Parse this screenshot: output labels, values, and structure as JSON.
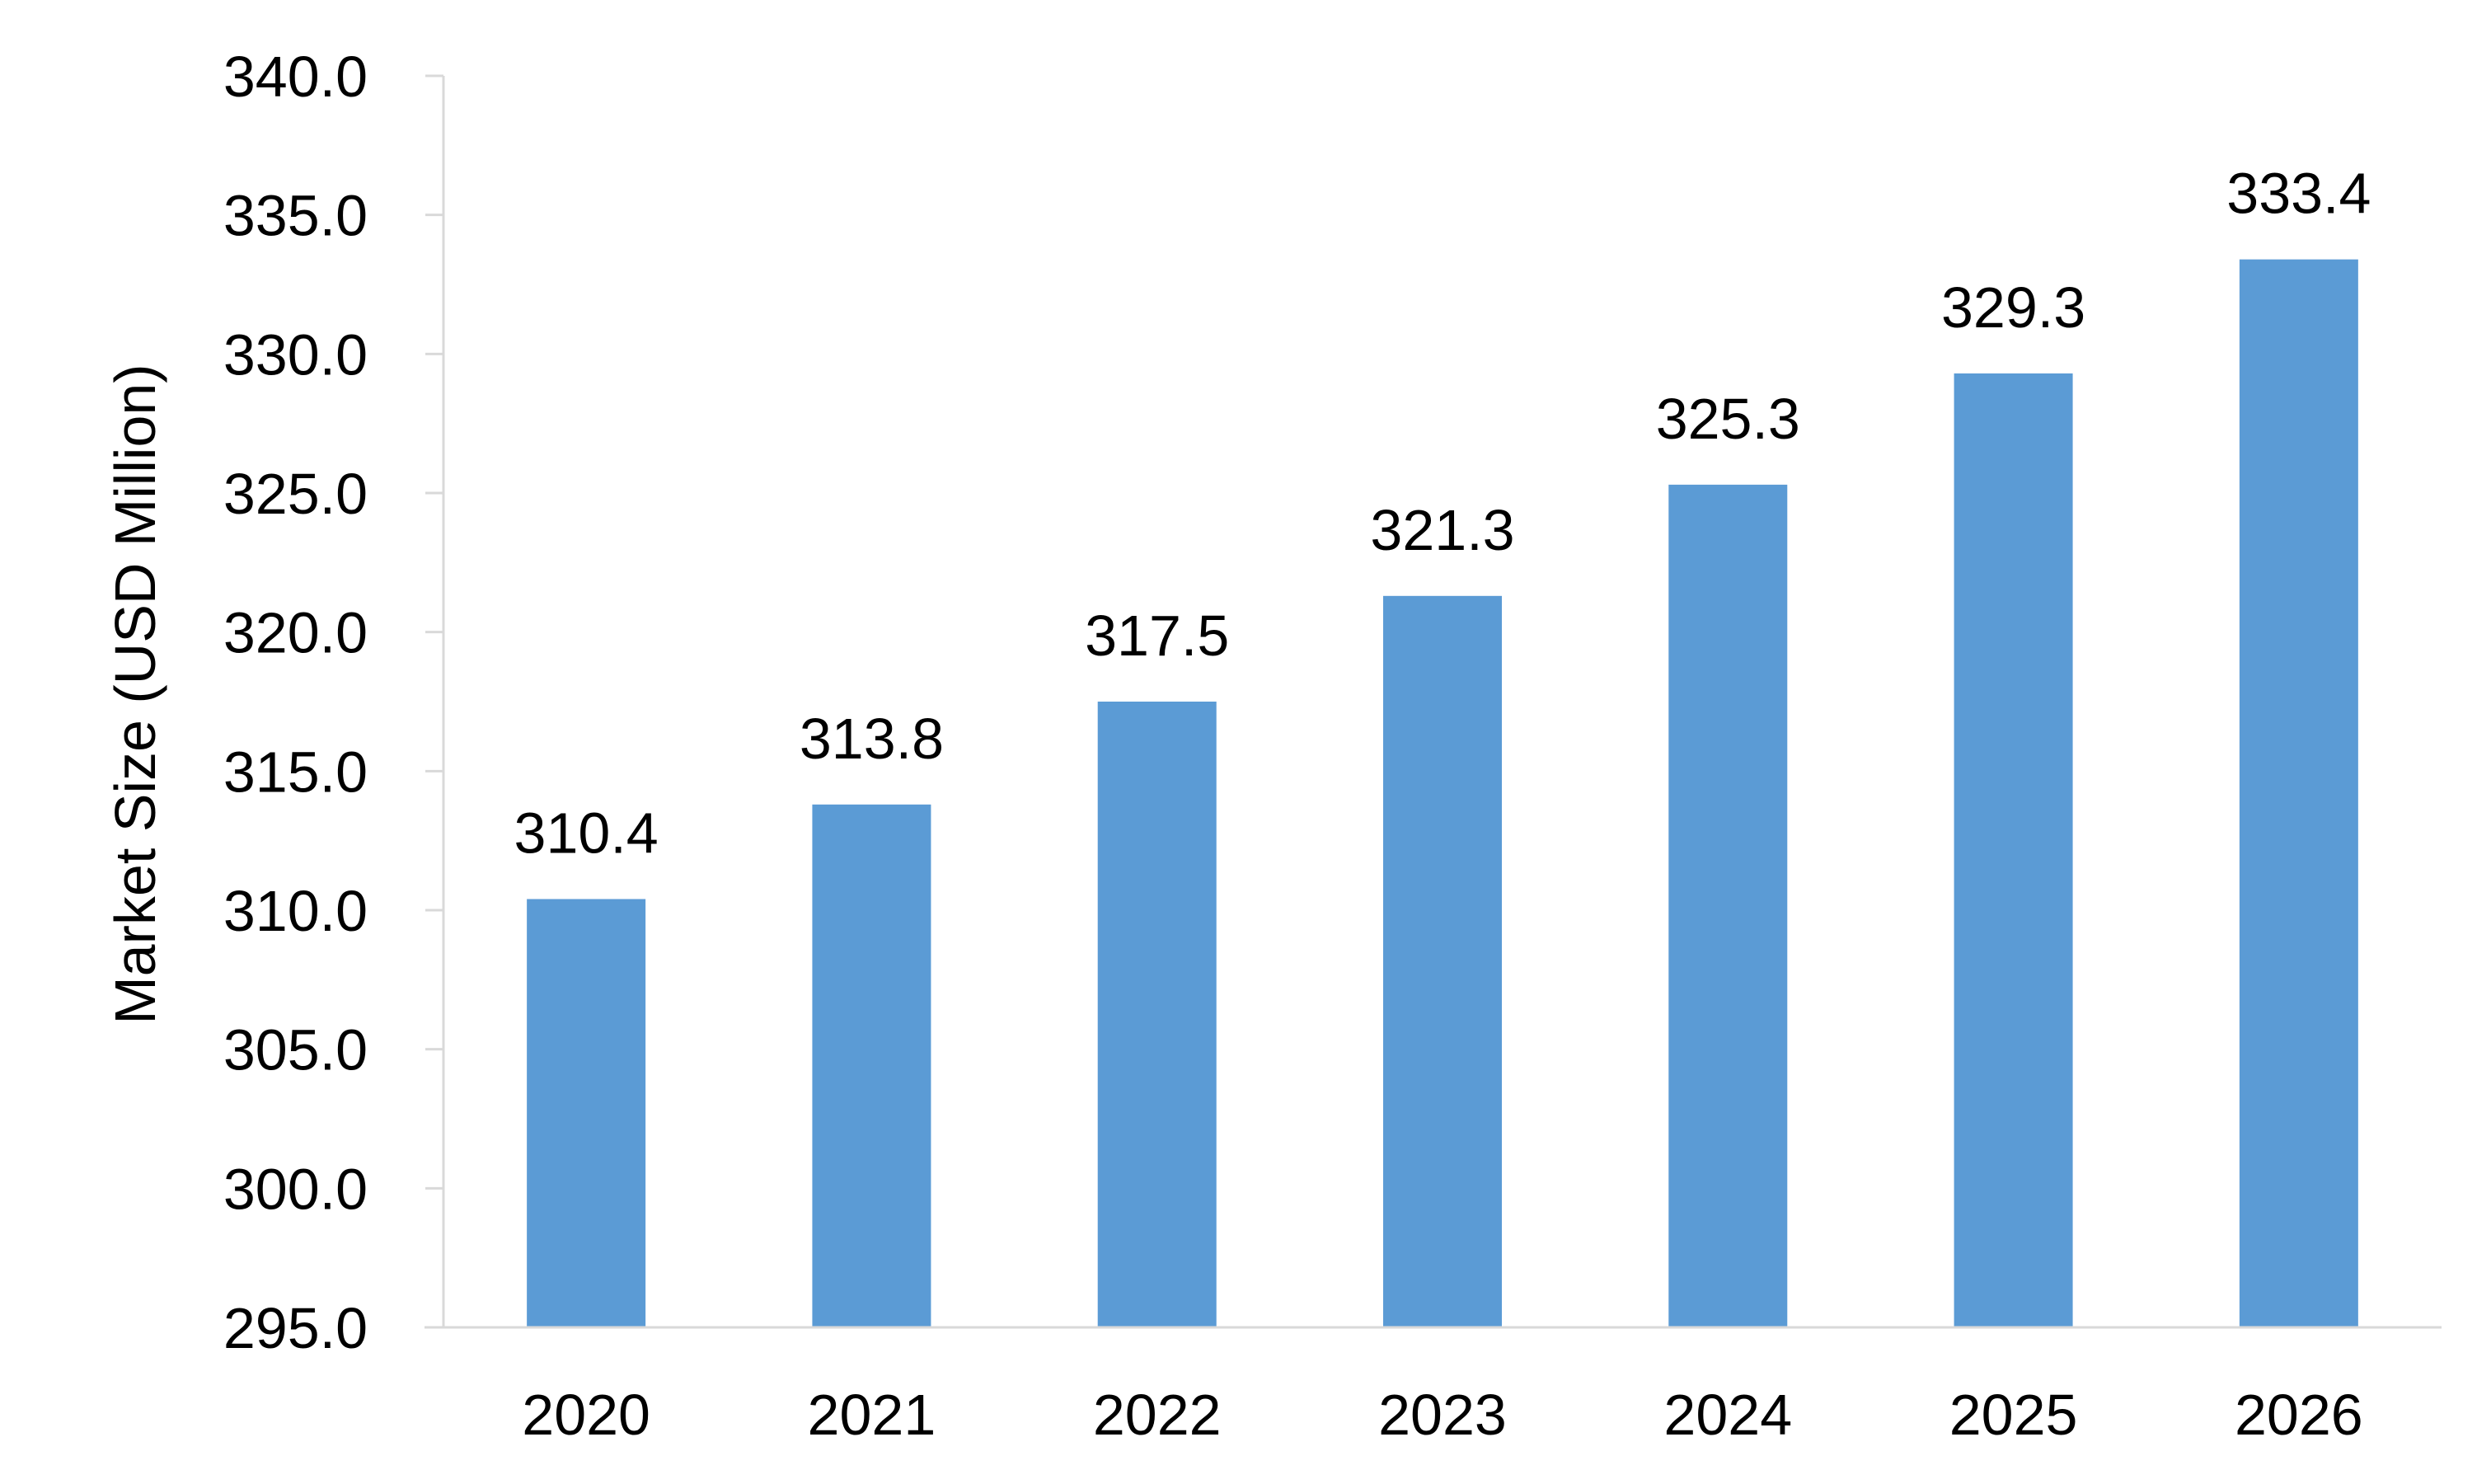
{
  "chart_data": {
    "type": "bar",
    "title": "",
    "xlabel": "",
    "ylabel": "Market Size (USD Million)",
    "categories": [
      "2020",
      "2021",
      "2022",
      "2023",
      "2024",
      "2025",
      "2026"
    ],
    "values": [
      310.4,
      313.8,
      317.5,
      321.3,
      325.3,
      329.3,
      333.4
    ],
    "value_labels": [
      "310.4",
      "313.8",
      "317.5",
      "321.3",
      "325.3",
      "329.3",
      "333.4"
    ],
    "ylim": [
      295.0,
      340.0
    ],
    "y_ticks": [
      295.0,
      300.0,
      305.0,
      310.0,
      315.0,
      320.0,
      325.0,
      330.0,
      335.0,
      340.0
    ],
    "y_tick_labels": [
      "295.0",
      "300.0",
      "305.0",
      "310.0",
      "315.0",
      "320.0",
      "325.0",
      "330.0",
      "335.0",
      "340.0"
    ],
    "grid": false,
    "legend": "none",
    "bar_color": "#5B9BD5",
    "axis_color": "#D9D9D9"
  }
}
